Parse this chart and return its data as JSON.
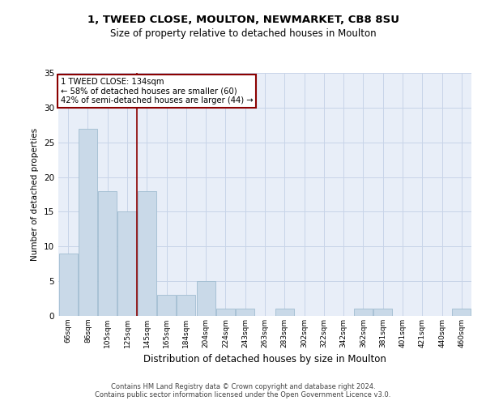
{
  "title1": "1, TWEED CLOSE, MOULTON, NEWMARKET, CB8 8SU",
  "title2": "Size of property relative to detached houses in Moulton",
  "xlabel": "Distribution of detached houses by size in Moulton",
  "ylabel": "Number of detached properties",
  "categories": [
    "66sqm",
    "86sqm",
    "105sqm",
    "125sqm",
    "145sqm",
    "165sqm",
    "184sqm",
    "204sqm",
    "224sqm",
    "243sqm",
    "263sqm",
    "283sqm",
    "302sqm",
    "322sqm",
    "342sqm",
    "362sqm",
    "381sqm",
    "401sqm",
    "421sqm",
    "440sqm",
    "460sqm"
  ],
  "values": [
    9,
    27,
    18,
    15,
    18,
    3,
    3,
    5,
    1,
    1,
    0,
    1,
    0,
    0,
    0,
    1,
    1,
    0,
    0,
    0,
    1
  ],
  "bar_color": "#c9d9e8",
  "bar_edge_color": "#a0bcd0",
  "vline_x": 3.5,
  "vline_color": "#8b0000",
  "annotation_title": "1 TWEED CLOSE: 134sqm",
  "annotation_line2": "← 58% of detached houses are smaller (60)",
  "annotation_line3": "42% of semi-detached houses are larger (44) →",
  "annotation_box_color": "#8b0000",
  "ylim": [
    0,
    35
  ],
  "yticks": [
    0,
    5,
    10,
    15,
    20,
    25,
    30,
    35
  ],
  "grid_color": "#c8d4e8",
  "bg_color": "#e8eef8",
  "footer1": "Contains HM Land Registry data © Crown copyright and database right 2024.",
  "footer2": "Contains public sector information licensed under the Open Government Licence v3.0."
}
